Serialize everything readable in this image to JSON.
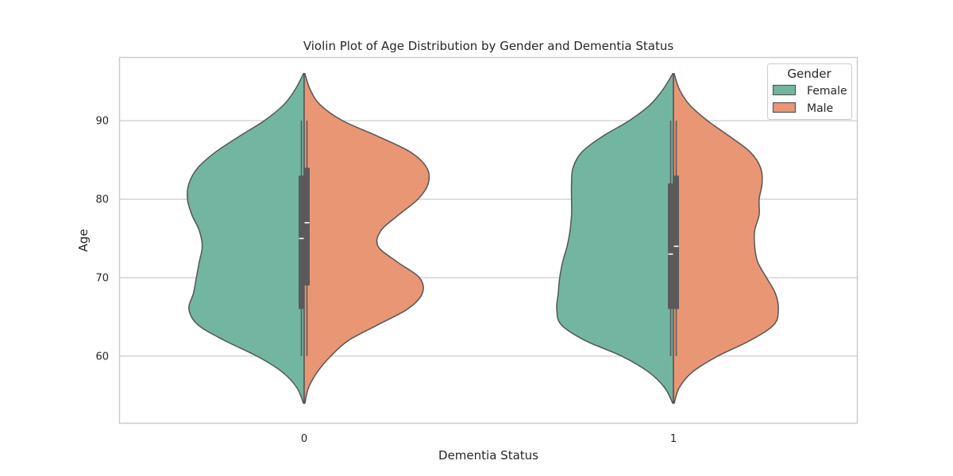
{
  "chart_data": {
    "type": "violin",
    "title": "Violin Plot of Age Distribution by Gender and Dementia Status",
    "xlabel": "Dementia Status",
    "ylabel": "Age",
    "categories": [
      "0",
      "1"
    ],
    "ylim": [
      51.5,
      98
    ],
    "yticks": [
      60,
      70,
      80,
      90
    ],
    "grid": "horizontal",
    "split": true,
    "legend": {
      "title": "Gender",
      "placement": "top-right"
    },
    "colors": {
      "Female": "#72b6a1",
      "Male": "#e99675",
      "outline": "#555555",
      "box": "#5a5a5a"
    },
    "series": [
      {
        "name": "Female",
        "groups": [
          {
            "category": "0",
            "profile": [
              [
                54,
                0.005
              ],
              [
                56,
                0.05
              ],
              [
                58,
                0.15
              ],
              [
                60,
                0.32
              ],
              [
                62,
                0.54
              ],
              [
                64,
                0.72
              ],
              [
                66,
                0.78
              ],
              [
                68,
                0.75
              ],
              [
                70,
                0.73
              ],
              [
                72,
                0.71
              ],
              [
                74,
                0.69
              ],
              [
                76,
                0.71
              ],
              [
                78,
                0.76
              ],
              [
                80,
                0.79
              ],
              [
                82,
                0.78
              ],
              [
                84,
                0.72
              ],
              [
                86,
                0.6
              ],
              [
                88,
                0.44
              ],
              [
                90,
                0.27
              ],
              [
                92,
                0.14
              ],
              [
                94,
                0.06
              ],
              [
                96,
                0.005
              ]
            ],
            "box": {
              "whisker_low": 60,
              "q1": 66,
              "median": 75,
              "q3": 83,
              "whisker_high": 90
            }
          },
          {
            "category": "1",
            "profile": [
              [
                54,
                0.005
              ],
              [
                56,
                0.06
              ],
              [
                58,
                0.17
              ],
              [
                60,
                0.35
              ],
              [
                62,
                0.6
              ],
              [
                64,
                0.76
              ],
              [
                66,
                0.79
              ],
              [
                68,
                0.78
              ],
              [
                70,
                0.77
              ],
              [
                72,
                0.75
              ],
              [
                74,
                0.72
              ],
              [
                76,
                0.7
              ],
              [
                78,
                0.69
              ],
              [
                80,
                0.69
              ],
              [
                82,
                0.69
              ],
              [
                84,
                0.68
              ],
              [
                86,
                0.62
              ],
              [
                88,
                0.48
              ],
              [
                90,
                0.3
              ],
              [
                92,
                0.16
              ],
              [
                94,
                0.07
              ],
              [
                96,
                0.005
              ]
            ],
            "box": {
              "whisker_low": 60,
              "q1": 66,
              "median": 73,
              "q3": 82,
              "whisker_high": 90
            }
          }
        ]
      },
      {
        "name": "Male",
        "groups": [
          {
            "category": "0",
            "profile": [
              [
                54,
                0.005
              ],
              [
                56,
                0.03
              ],
              [
                58,
                0.09
              ],
              [
                60,
                0.18
              ],
              [
                62,
                0.3
              ],
              [
                64,
                0.5
              ],
              [
                66,
                0.7
              ],
              [
                68,
                0.8
              ],
              [
                70,
                0.78
              ],
              [
                72,
                0.63
              ],
              [
                74,
                0.5
              ],
              [
                76,
                0.52
              ],
              [
                78,
                0.64
              ],
              [
                80,
                0.77
              ],
              [
                82,
                0.84
              ],
              [
                84,
                0.83
              ],
              [
                86,
                0.72
              ],
              [
                88,
                0.5
              ],
              [
                90,
                0.26
              ],
              [
                92,
                0.11
              ],
              [
                94,
                0.04
              ],
              [
                96,
                0.005
              ]
            ],
            "box": {
              "whisker_low": 60,
              "q1": 69,
              "median": 77,
              "q3": 84,
              "whisker_high": 90
            }
          },
          {
            "category": "1",
            "profile": [
              [
                54,
                0.005
              ],
              [
                56,
                0.04
              ],
              [
                58,
                0.13
              ],
              [
                60,
                0.3
              ],
              [
                62,
                0.52
              ],
              [
                64,
                0.68
              ],
              [
                66,
                0.71
              ],
              [
                68,
                0.69
              ],
              [
                70,
                0.63
              ],
              [
                72,
                0.57
              ],
              [
                74,
                0.55
              ],
              [
                76,
                0.55
              ],
              [
                78,
                0.58
              ],
              [
                80,
                0.58
              ],
              [
                82,
                0.6
              ],
              [
                84,
                0.59
              ],
              [
                86,
                0.52
              ],
              [
                88,
                0.38
              ],
              [
                90,
                0.23
              ],
              [
                92,
                0.11
              ],
              [
                94,
                0.04
              ],
              [
                96,
                0.005
              ]
            ],
            "box": {
              "whisker_low": 60,
              "q1": 66,
              "median": 74,
              "q3": 83,
              "whisker_high": 90
            }
          }
        ]
      }
    ]
  }
}
